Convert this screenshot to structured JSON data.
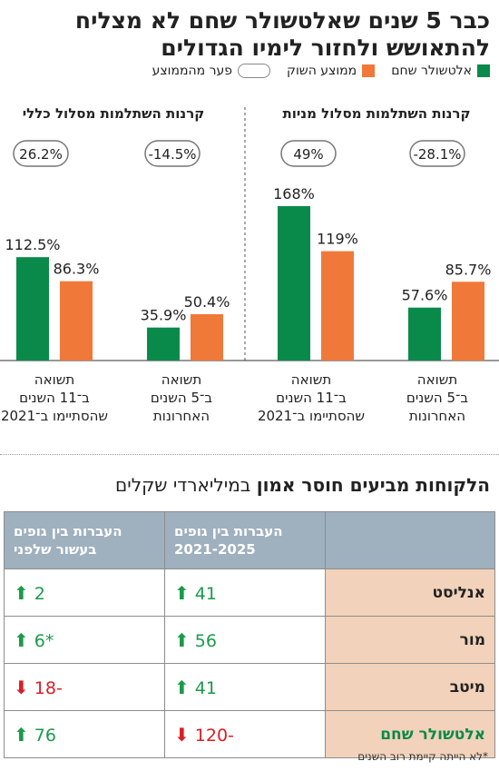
{
  "title": "כבר 5 שנים שאלטשולר שחם לא מצליח להתאושש ולחזור לימיו הגדולים",
  "legend": {
    "altshuler": "אלטשולר שחם",
    "market": "ממוצע השוק",
    "gap": "פער מהממוצע"
  },
  "colors": {
    "green": "#0a8a4a",
    "orange": "#f0793a",
    "red": "#d81f26",
    "table_header": "#9fb0bf",
    "row_label_bg": "#f2d2ba"
  },
  "chart_data": [
    {
      "type": "bar",
      "title": "קרנות השתלמות מסלול מניות",
      "categories": [
        "תשואה ב־5 השנים האחרונות",
        "תשואה ב־11 השנים שהסתיימו ב־2021"
      ],
      "series": [
        {
          "name": "אלטשולר שחם",
          "values": [
            57.6,
            168
          ]
        },
        {
          "name": "ממוצע השוק",
          "values": [
            85.7,
            119
          ]
        }
      ],
      "gap_labels": [
        "-28.1%",
        "49%"
      ]
    },
    {
      "type": "bar",
      "title": "קרנות השתלמות מסלול כללי",
      "categories": [
        "תשואה ב־5 השנים האחרונות",
        "תשואה ב־11 השנים שהסתיימו ב־2021"
      ],
      "series": [
        {
          "name": "אלטשולר שחם",
          "values": [
            35.9,
            112.5
          ]
        },
        {
          "name": "ממוצע השוק",
          "values": [
            50.4,
            86.3
          ]
        }
      ],
      "gap_labels": [
        "-14.5%",
        "26.2%"
      ]
    }
  ],
  "captions": {
    "recent": [
      "תשואה",
      "ב־5 השנים",
      "האחרונות"
    ],
    "long": [
      "תשואה",
      "ב־11 השנים",
      "שהסתיימו ב־2021"
    ]
  },
  "section2": {
    "title_bold": "הלקוחות מביעים חוסר אמון",
    "title_rest": " במיליארדי שקלים"
  },
  "table": {
    "col1": [
      "העברות בין גופים",
      "2021-2025"
    ],
    "col2": [
      "העברות בין גופים",
      "בעשור שלפני"
    ],
    "rows": [
      {
        "label": "אנליסט",
        "v1": "41",
        "d1": "up",
        "v2": "2",
        "d2": "up"
      },
      {
        "label": "מור",
        "v1": "56",
        "d1": "up",
        "v2": "*6",
        "d2": "up"
      },
      {
        "label": "מיטב",
        "v1": "41",
        "d1": "up",
        "v2": "-18",
        "d2": "down"
      },
      {
        "label": "אלטשולר שחם",
        "v1": "-120",
        "d1": "down",
        "v2": "76",
        "d2": "up"
      }
    ]
  },
  "footnote": "*לא הייתה קיימת רוב השנים"
}
